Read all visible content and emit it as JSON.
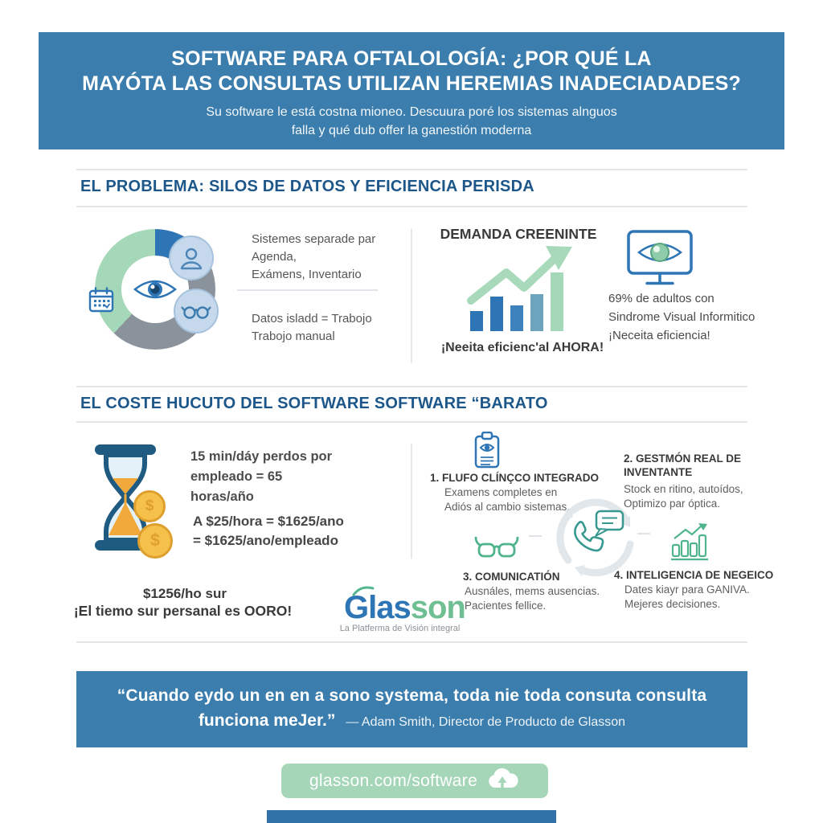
{
  "colors": {
    "banner_blue": "#3b7dad",
    "section_title_blue": "#1d578a",
    "donut_blue": "#2e75b5",
    "donut_gray": "#8a929c",
    "donut_green": "#a5d8b8",
    "teal_icon": "#37988f",
    "green_icon": "#4fb48c",
    "footer_green": "#a5d6b8",
    "coin_gold": "#f6c14a",
    "hourglass_navy": "#1f5a80",
    "sand_orange": "#f2a93b"
  },
  "header": {
    "title_line1": "SOFTWARE PARA OFTALOLOGÍA: ¿POR QUÉ LA",
    "title_line2": "MAYÓTA LAS CONSULTAS UTILIZAN HEREMIAS INADECIADADES?",
    "subtitle_line1": "Su software le está costna mioneo. Descuura poré los sistemas alnguos",
    "subtitle_line2": "falla y qué dub offer la ganestión moderna"
  },
  "section_problem": {
    "title": "EL PROBLEMA: SILOS DE DATOS Y EFICIENCIA PERISDA",
    "systems_text": [
      "Sistemes separade par",
      "Agenda,",
      "Exámens, Inventario"
    ],
    "data_text": [
      "Datos isladd = Trabojo",
      "Trabojo manual"
    ],
    "demand_title": "DEMANDA CREENINTE",
    "demand_caption": "¡Neeita eficienc'al AHORA!",
    "stat_lines": [
      "69% de adultos con",
      "Sindrome Visual Informitico",
      "¡Neceita eficiencia!"
    ]
  },
  "chart_data": {
    "type": "bar",
    "title": "DEMANDA CREENINTE",
    "categories": [
      "b1",
      "b2",
      "b3",
      "b4",
      "b5"
    ],
    "values": [
      25,
      43,
      32,
      46,
      73
    ],
    "unit": "relative height (px), decorative infographic chart with no axes",
    "colors": [
      "#2e75b5",
      "#2e75b5",
      "#3d82bd",
      "#6ca3bd",
      "#a5d8b8"
    ],
    "annotation": "green upward trend arrow over bars",
    "caption": "¡Neeita eficienc'al AHORA!"
  },
  "section_cost": {
    "title": "EL COSTE HUCUTO DEL SOFTWARE SOFTWARE “BARATO",
    "time_lines": [
      "15 min/dáy perdos por",
      "empleado = 65",
      "horas/año"
    ],
    "cost_lines": [
      "A $25/hora = $1625/ano",
      "= $1625/ano/empleado"
    ],
    "highlight1": "$1256/ho sur",
    "highlight2": "¡El tiemo sur persanal es OORO!",
    "coin_symbol": "$",
    "features": [
      {
        "title": "1. FLUFO CLÍNÇCO INTEGRADO",
        "lines": [
          "Examens completes en",
          "Adiós al cambio sistemas."
        ]
      },
      {
        "title": "2. GESTMÓN REAL DE INVENTANTE",
        "lines": [
          "Stock en ritino, autoídos,",
          "Optimizo par óptica."
        ]
      },
      {
        "title": "3. COMUNICATIÓN",
        "lines": [
          "Ausnáles, mems ausencias.",
          "Pacientes fellice."
        ]
      },
      {
        "title": "4. INTELIGENCIA DE NEGEICO",
        "lines": [
          "Dates kiayr para GANIVA.",
          "Mejeres decisiones."
        ]
      }
    ]
  },
  "logo": {
    "part1": "Glas",
    "part2": "son",
    "tagline": "La Platferma de Visión integral"
  },
  "quote": {
    "line1": "“Cuando eydo un en en a sono systema, toda nie toda consuta consulta",
    "line2": "funciona meJer.”",
    "attribution": "— Adam Smith, Director de Producto de Glasson"
  },
  "footer": {
    "url": "glasson.com/software"
  }
}
